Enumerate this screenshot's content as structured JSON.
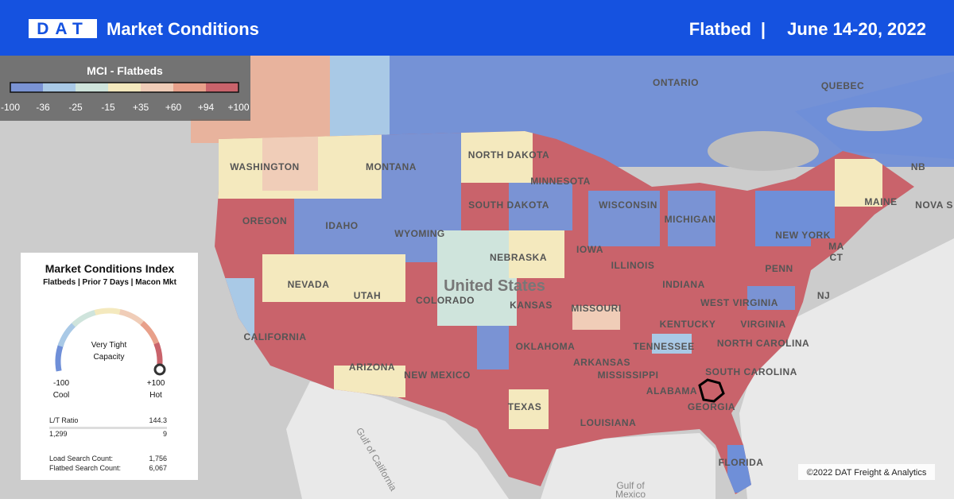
{
  "header": {
    "brand": "DAT",
    "title": "Market Conditions",
    "equipment": "Flatbed",
    "separator": "|",
    "dates": "June 14-20, 2022"
  },
  "legend": {
    "title": "MCI - Flatbeds",
    "ticks": [
      "-100",
      "-36",
      "-25",
      "-15",
      "+35",
      "+60",
      "+94",
      "+100"
    ]
  },
  "map_labels": [
    "ONTARIO",
    "QUEBEC",
    "NB",
    "NOVA S",
    "MAINE",
    "WASHINGTON",
    "MONTANA",
    "NORTH DAKOTA",
    "MINNESOTA",
    "SOUTH DAKOTA",
    "WISCONSIN",
    "MICHIGAN",
    "OREGON",
    "IDAHO",
    "WYOMING",
    "IOWA",
    "NEW YORK",
    "NEBRASKA",
    "NEVADA",
    "UTAH",
    "COLORADO",
    "United States",
    "KANSAS",
    "MISSOURI",
    "ILLINOIS",
    "INDIANA",
    "PENN",
    "NJ",
    "MA",
    "CT",
    "WEST VIRGINIA",
    "KENTUCKY",
    "VIRGINIA",
    "CALIFORNIA",
    "ARIZONA",
    "NEW MEXICO",
    "OKLAHOMA",
    "TENNESSEE",
    "NORTH CAROLINA",
    "ARKANSAS",
    "MISSISSIPPI",
    "ALABAMA",
    "SOUTH CAROLINA",
    "GEORGIA",
    "TEXAS",
    "LOUISIANA",
    "FLORIDA",
    "Gulf of",
    "Mexico",
    "Gulf of California"
  ],
  "panel": {
    "title": "Market Conditions Index",
    "subtitle": "Flatbeds | Prior 7 Days | Macon Mkt",
    "gauge_line1": "Very Tight",
    "gauge_line2": "Capacity",
    "min": "-100",
    "min_label": "Cool",
    "max": "+100",
    "max_label": "Hot",
    "lt_ratio_label": "L/T Ratio",
    "lt_ratio": "144.3",
    "loads": "1,299",
    "trucks": "9",
    "load_search_label": "Load Search Count:",
    "load_search": "1,756",
    "flatbed_search_label": "Flatbed Search Count:",
    "flatbed_search": "6,067"
  },
  "copyright": "©2022 DAT Freight & Analytics"
}
